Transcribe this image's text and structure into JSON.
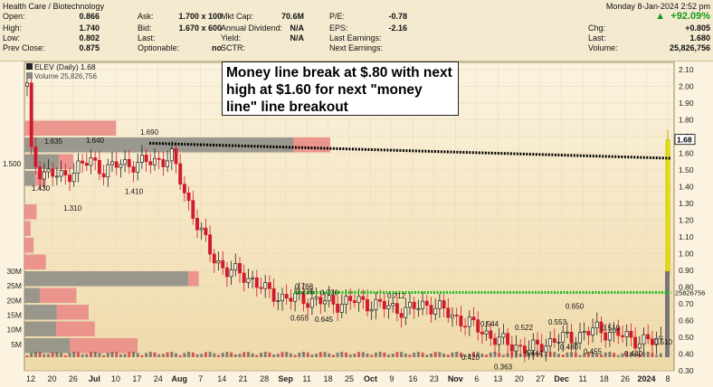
{
  "header": {
    "sector": "Health Care / Biotechnology",
    "datetime": "Monday  8-Jan-2024  2:52 pm",
    "change_pct": "+92.09%",
    "rows": [
      {
        "k1": "Open:",
        "v1": "0.866",
        "k2": "Ask:",
        "v2": "1.700 x 100",
        "k3": "Mkt Cap:",
        "v3": "70.6M",
        "k4": "P/E:",
        "v4": "-0.78",
        "k5": "",
        "v5": ""
      },
      {
        "k1": "High:",
        "v1": "1.740",
        "k2": "Bid:",
        "v2": "1.670 x 600",
        "k3": "Annual Dividend:",
        "v3": "N/A",
        "k4": "EPS:",
        "v4": "-2.16",
        "k5": "Chg:",
        "v5": "+0.805"
      },
      {
        "k1": "Low:",
        "v1": "0.802",
        "k2": "Last:",
        "v2": "",
        "k3": "Yield:",
        "v3": "N/A",
        "k4": "Last Earnings:",
        "v4": "",
        "k5": "Last:",
        "v5": "1.680"
      },
      {
        "k1": "Prev Close:",
        "v1": "0.875",
        "k2": "Optionable:",
        "v2": "no",
        "k3": "SCTR:",
        "v3": "",
        "k4": "Next Earnings:",
        "v4": "",
        "k5": "Volume:",
        "v5": "25,826,756"
      }
    ]
  },
  "annotation": {
    "text": "Money line break at $.80 with next high at $1.60 for next \"money line\" line breakout"
  },
  "chart_data": {
    "type": "candlestick",
    "symbol_label": "ELEV (Daily) 1.68",
    "volume_label": "Volume 25,826,756",
    "y_axis": {
      "min": 0.3,
      "max": 2.1,
      "ticks": [
        "0.30",
        "0.40",
        "0.50",
        "0.60",
        "0.70",
        "0.80",
        "0.90",
        "1.00",
        "1.10",
        "1.20",
        "1.30",
        "1.40",
        "1.50",
        "1.60",
        "1.70",
        "1.80",
        "1.90",
        "2.00",
        "2.10"
      ]
    },
    "volume_axis": {
      "ticks": [
        "5M",
        "10M",
        "15M",
        "20M",
        "25M",
        "30M"
      ]
    },
    "x_axis": {
      "ticks": [
        "12",
        "20",
        "26",
        "Jul",
        "10",
        "17",
        "24",
        "Aug",
        "7",
        "14",
        "21",
        "28",
        "Sep",
        "11",
        "18",
        "25",
        "Oct",
        "9",
        "16",
        "23",
        "Nov",
        "6",
        "13",
        "20",
        "27",
        "Dec",
        "11",
        "18",
        "26",
        "2024",
        "8"
      ],
      "bold": [
        "Jul",
        "Aug",
        "Sep",
        "Oct",
        "Nov",
        "Dec",
        "2024"
      ]
    },
    "last_price_label": "1.68",
    "money_line": {
      "label": "0.768",
      "value": 0.768,
      "right_label": "25826756"
    },
    "resistance_line": {
      "value": 1.6
    },
    "price_labels": [
      {
        "text": "1.500",
        "value": 1.5
      },
      {
        "text": "1.430",
        "value": 1.43
      },
      {
        "text": "1.635",
        "value": 1.635
      },
      {
        "text": "1.310",
        "value": 1.31
      },
      {
        "text": "1.640",
        "value": 1.64
      },
      {
        "text": "1.410",
        "value": 1.41
      },
      {
        "text": "1.690",
        "value": 1.69
      },
      {
        "text": "0.655",
        "value": 0.655
      },
      {
        "text": "0.645",
        "value": 0.645
      },
      {
        "text": "0.735",
        "value": 0.735
      },
      {
        "text": "0.730",
        "value": 0.73
      },
      {
        "text": "0.712",
        "value": 0.712
      },
      {
        "text": "0.420",
        "value": 0.42
      },
      {
        "text": "0.544",
        "value": 0.544
      },
      {
        "text": "0.363",
        "value": 0.363
      },
      {
        "text": "0.522",
        "value": 0.522
      },
      {
        "text": "0.444",
        "value": 0.444
      },
      {
        "text": "0.553",
        "value": 0.553
      },
      {
        "text": "0.480",
        "value": 0.48
      },
      {
        "text": "0.650",
        "value": 0.65
      },
      {
        "text": "0.455",
        "value": 0.455
      },
      {
        "text": "0.519",
        "value": 0.519
      },
      {
        "text": "0.440",
        "value": 0.44
      },
      {
        "text": "0.510",
        "value": 0.51
      }
    ],
    "volume_by_price": [
      {
        "low": 1.7,
        "high": 1.8,
        "value": 0.3,
        "down": 1.0
      },
      {
        "low": 1.6,
        "high": 1.7,
        "value": 1.0,
        "down": 0.12
      },
      {
        "low": 1.5,
        "high": 1.6,
        "value": 0.16,
        "down": 0.3
      },
      {
        "low": 1.4,
        "high": 1.5,
        "value": 0.07,
        "down": 0.5
      },
      {
        "low": 1.2,
        "high": 1.3,
        "value": 0.04,
        "down": 1.0
      },
      {
        "low": 1.1,
        "high": 1.2,
        "value": 0.02,
        "down": 1.0
      },
      {
        "low": 1.0,
        "high": 1.1,
        "value": 0.03,
        "down": 1.0
      },
      {
        "low": 0.9,
        "high": 1.0,
        "value": 0.07,
        "down": 1.0
      },
      {
        "low": 0.8,
        "high": 0.9,
        "value": 0.57,
        "down": 0.06
      },
      {
        "low": 0.7,
        "high": 0.8,
        "value": 0.17,
        "down": 0.7
      },
      {
        "low": 0.6,
        "high": 0.7,
        "value": 0.21,
        "down": 0.5
      },
      {
        "low": 0.5,
        "high": 0.6,
        "value": 0.23,
        "down": 0.55
      },
      {
        "low": 0.4,
        "high": 0.5,
        "value": 0.37,
        "down": 0.6
      }
    ],
    "colors": {
      "up": "#222222",
      "down": "#d11a2a",
      "last": "#e8e000",
      "money": "#22bb22",
      "vbp_up": "#8f8f86",
      "vbp_down": "#e98c87"
    }
  }
}
